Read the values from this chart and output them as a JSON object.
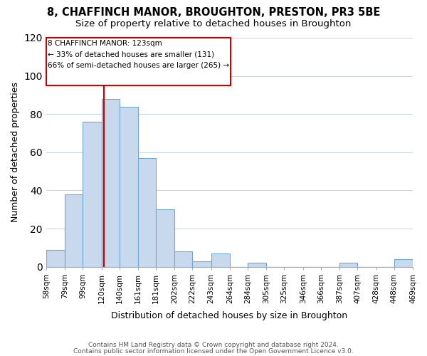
{
  "title": "8, CHAFFINCH MANOR, BROUGHTON, PRESTON, PR3 5BE",
  "subtitle": "Size of property relative to detached houses in Broughton",
  "xlabel": "Distribution of detached houses by size in Broughton",
  "ylabel": "Number of detached properties",
  "bar_edges": [
    58,
    79,
    99,
    120,
    140,
    161,
    181,
    202,
    222,
    243,
    264,
    284,
    305,
    325,
    346,
    366,
    387,
    407,
    428,
    448,
    469
  ],
  "bar_heights": [
    9,
    38,
    76,
    88,
    84,
    57,
    30,
    8,
    3,
    7,
    0,
    2,
    0,
    0,
    0,
    0,
    2,
    0,
    0,
    4
  ],
  "bar_color": "#c8d9ee",
  "bar_edgecolor": "#6fa8d5",
  "vline_x": 123,
  "vline_color": "#cc0000",
  "ylim": [
    0,
    120
  ],
  "yticks": [
    0,
    20,
    40,
    60,
    80,
    100,
    120
  ],
  "annotation_box_text": "8 CHAFFINCH MANOR: 123sqm\n← 33% of detached houses are smaller (131)\n66% of semi-detached houses are larger (265) →",
  "footer_line1": "Contains HM Land Registry data © Crown copyright and database right 2024.",
  "footer_line2": "Contains public sector information licensed under the Open Government Licence v3.0.",
  "tick_labels": [
    "58sqm",
    "79sqm",
    "99sqm",
    "120sqm",
    "140sqm",
    "161sqm",
    "181sqm",
    "202sqm",
    "222sqm",
    "243sqm",
    "264sqm",
    "284sqm",
    "305sqm",
    "325sqm",
    "346sqm",
    "366sqm",
    "387sqm",
    "407sqm",
    "428sqm",
    "448sqm",
    "469sqm"
  ]
}
